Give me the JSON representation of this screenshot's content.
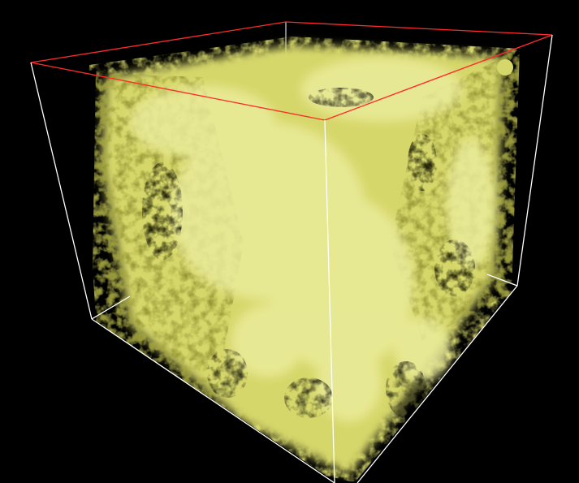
{
  "viewport": {
    "background_color": "#000000"
  },
  "bounding_box": {
    "top_face_edge_color": "#ff2a2a",
    "side_edge_color": "#ffffff"
  },
  "volume": {
    "render_style": "isosurface",
    "surface_color": "#d6d76a",
    "shadow_color": "#8f9030",
    "highlight_color": "#eaeb9a"
  }
}
